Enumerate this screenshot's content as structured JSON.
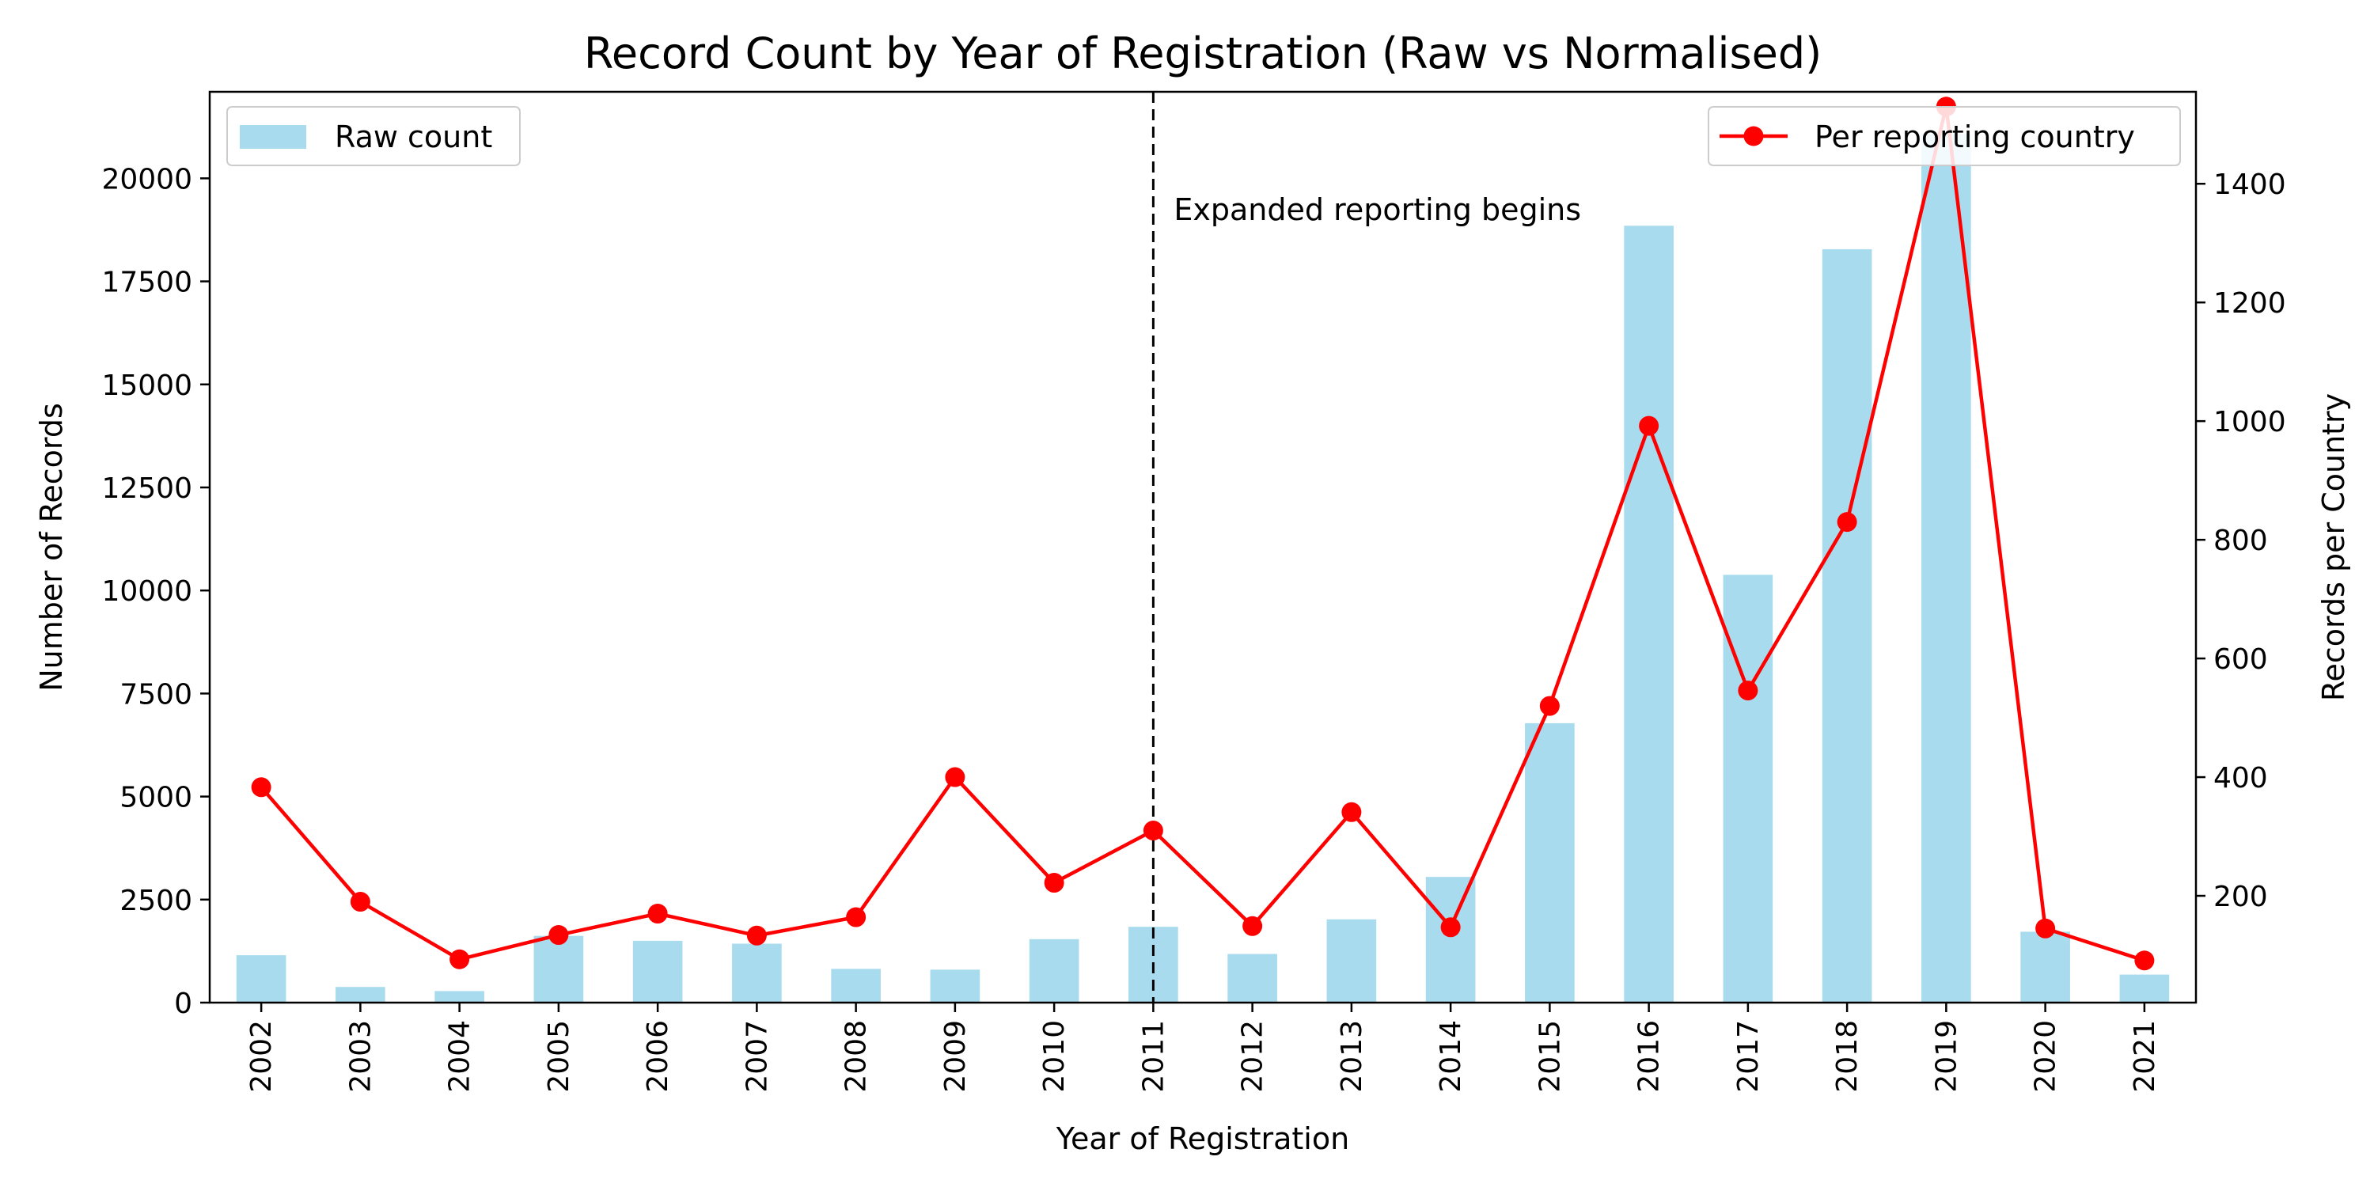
{
  "chart_data": {
    "type": "bar",
    "title": "Record Count by Year of Registration (Raw vs Normalised)",
    "xlabel": "Year of Registration",
    "ylabel": "Number of Records",
    "y2label": "Records per Country",
    "categories": [
      "2002",
      "2003",
      "2004",
      "2005",
      "2006",
      "2007",
      "2008",
      "2009",
      "2010",
      "2011",
      "2012",
      "2013",
      "2014",
      "2015",
      "2016",
      "2017",
      "2018",
      "2019",
      "2020",
      "2021"
    ],
    "ylim": [
      0,
      22100
    ],
    "y_ticks": [
      0,
      2500,
      5000,
      7500,
      10000,
      12500,
      15000,
      17500,
      20000
    ],
    "y2lim": [
      20,
      1555
    ],
    "y2_ticks": [
      200,
      400,
      600,
      800,
      1000,
      1200,
      1400
    ],
    "grid": false,
    "series": [
      {
        "name": "Raw count",
        "type": "bar",
        "axis": "left",
        "color": "#a8dbee",
        "values": [
          1150,
          380,
          280,
          1620,
          1500,
          1430,
          820,
          800,
          1540,
          1840,
          1180,
          2020,
          3050,
          6780,
          18850,
          10380,
          18280,
          21080,
          1720,
          680
        ]
      },
      {
        "name": "Per reporting country",
        "type": "line",
        "axis": "right",
        "color": "#ff0000",
        "marker": "circle",
        "values": [
          383,
          190,
          93,
          134,
          170,
          133,
          164,
          400,
          222,
          310,
          149,
          341,
          147,
          520,
          992,
          546,
          830,
          1530,
          145,
          91
        ]
      }
    ],
    "legend_left_position": "upper-left",
    "legend_right_position": "upper-right",
    "annotation": {
      "text": "Expanded reporting begins",
      "x": "2011",
      "line_style": "dashed"
    }
  }
}
